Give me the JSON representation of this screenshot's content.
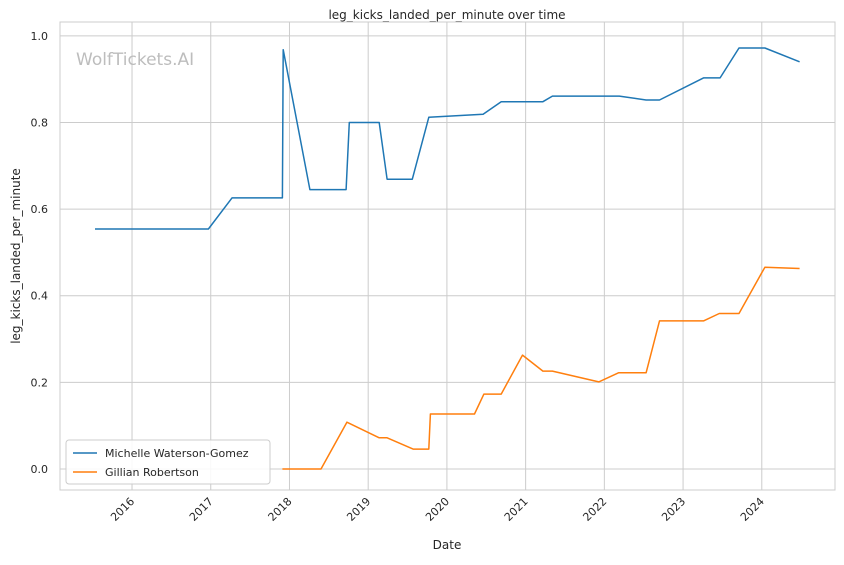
{
  "chart_data": {
    "type": "line",
    "title": "leg_kicks_landed_per_minute over time",
    "xlabel": "Date",
    "ylabel": "leg_kicks_landed_per_minute",
    "watermark": "WolfTickets.AI",
    "xlim": [
      2015.085,
      2024.93
    ],
    "ylim": [
      -0.0485,
      1.032
    ],
    "x_ticks": [
      2016,
      2017,
      2018,
      2019,
      2020,
      2021,
      2022,
      2023,
      2024
    ],
    "x_tick_labels": [
      "2016",
      "2017",
      "2018",
      "2019",
      "2020",
      "2021",
      "2022",
      "2023",
      "2024"
    ],
    "y_ticks": [
      0.0,
      0.2,
      0.4,
      0.6,
      0.8,
      1.0
    ],
    "y_tick_labels": [
      "0.0",
      "0.2",
      "0.4",
      "0.6",
      "0.8",
      "1.0"
    ],
    "grid": true,
    "legend_position": "bottom-left",
    "series": [
      {
        "name": "Michelle Waterson-Gomez",
        "color": "#1f77b4",
        "x": [
          2015.53,
          2016.97,
          2017.27,
          2017.91,
          2017.92,
          2018.26,
          2018.72,
          2018.76,
          2019.14,
          2019.24,
          2019.56,
          2019.77,
          2020.46,
          2020.69,
          2021.22,
          2021.34,
          2022.19,
          2022.53,
          2022.7,
          2023.26,
          2023.47,
          2023.71,
          2024.04,
          2024.48
        ],
        "y": [
          0.554,
          0.554,
          0.626,
          0.626,
          0.968,
          0.645,
          0.645,
          0.8,
          0.8,
          0.669,
          0.669,
          0.812,
          0.819,
          0.848,
          0.848,
          0.861,
          0.861,
          0.852,
          0.852,
          0.903,
          0.903,
          0.972,
          0.972,
          0.94
        ]
      },
      {
        "name": "Gillian Robertson",
        "color": "#ff7f0e",
        "x": [
          2017.91,
          2018.4,
          2018.73,
          2019.14,
          2019.24,
          2019.57,
          2019.77,
          2019.79,
          2020.35,
          2020.47,
          2020.69,
          2020.96,
          2021.22,
          2021.34,
          2021.93,
          2022.18,
          2022.53,
          2022.7,
          2023.26,
          2023.46,
          2023.71,
          2024.04,
          2024.48
        ],
        "y": [
          0.0,
          0.0,
          0.108,
          0.072,
          0.072,
          0.046,
          0.046,
          0.127,
          0.127,
          0.173,
          0.173,
          0.263,
          0.226,
          0.226,
          0.201,
          0.222,
          0.222,
          0.342,
          0.342,
          0.359,
          0.359,
          0.466,
          0.463
        ]
      }
    ]
  }
}
